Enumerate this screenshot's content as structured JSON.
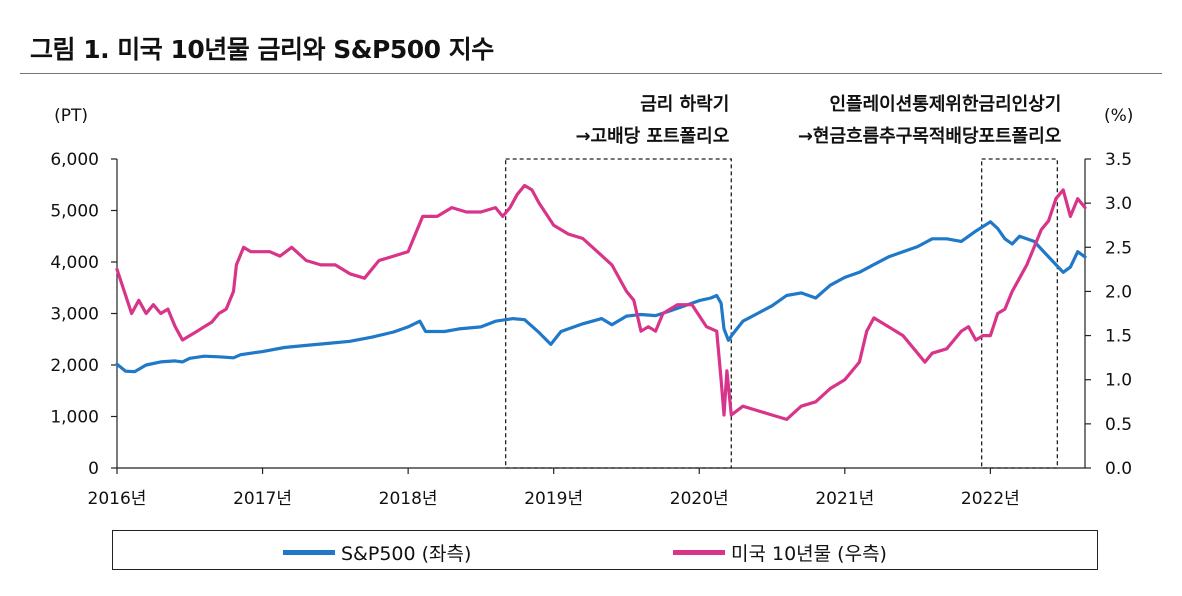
{
  "title": "그림 1.  미국 10년물 금리와 S&P500 지수",
  "chart_data": {
    "type": "line",
    "title": "그림 1.  미국 10년물 금리와 S&P500 지수",
    "left_unit": "(PT)",
    "right_unit": "(%)",
    "left_ylim": [
      0,
      6000
    ],
    "right_ylim": [
      0.0,
      3.5
    ],
    "left_ticks": [
      "0",
      "1,000",
      "2,000",
      "3,000",
      "4,000",
      "5,000",
      "6,000"
    ],
    "right_ticks": [
      "0.0",
      "0.5",
      "1.0",
      "1.5",
      "2.0",
      "2.5",
      "3.0",
      "3.5"
    ],
    "x_ticks": [
      "2016년",
      "2017년",
      "2018년",
      "2019년",
      "2020년",
      "2021년",
      "2022년"
    ],
    "x_range": [
      2016.0,
      2022.65
    ],
    "grid": false,
    "legend_position": "bottom",
    "series": [
      {
        "name": "S&P500 (좌측)",
        "axis": "left",
        "color": "#1F78C8",
        "x": [
          2016.0,
          2016.06,
          2016.12,
          2016.2,
          2016.3,
          2016.4,
          2016.45,
          2016.5,
          2016.6,
          2016.7,
          2016.8,
          2016.85,
          2016.95,
          2017.0,
          2017.15,
          2017.3,
          2017.45,
          2017.6,
          2017.75,
          2017.9,
          2018.0,
          2018.08,
          2018.12,
          2018.25,
          2018.35,
          2018.5,
          2018.6,
          2018.72,
          2018.8,
          2018.9,
          2018.98,
          2019.05,
          2019.2,
          2019.33,
          2019.4,
          2019.5,
          2019.6,
          2019.7,
          2019.8,
          2019.9,
          2020.0,
          2020.08,
          2020.12,
          2020.15,
          2020.17,
          2020.2,
          2020.23,
          2020.3,
          2020.4,
          2020.5,
          2020.6,
          2020.7,
          2020.8,
          2020.9,
          2021.0,
          2021.1,
          2021.2,
          2021.3,
          2021.4,
          2021.5,
          2021.6,
          2021.7,
          2021.8,
          2021.9,
          2022.0,
          2022.05,
          2022.1,
          2022.15,
          2022.2,
          2022.3,
          2022.4,
          2022.45,
          2022.5,
          2022.55,
          2022.6,
          2022.65
        ],
        "values": [
          2015,
          1880,
          1870,
          2000,
          2060,
          2080,
          2060,
          2130,
          2170,
          2160,
          2140,
          2200,
          2240,
          2260,
          2340,
          2380,
          2420,
          2460,
          2540,
          2640,
          2740,
          2850,
          2650,
          2650,
          2700,
          2740,
          2850,
          2900,
          2880,
          2630,
          2400,
          2650,
          2800,
          2900,
          2780,
          2950,
          2980,
          2960,
          3050,
          3150,
          3250,
          3300,
          3350,
          3200,
          2700,
          2480,
          2600,
          2850,
          3000,
          3150,
          3350,
          3400,
          3300,
          3550,
          3700,
          3800,
          3950,
          4100,
          4200,
          4300,
          4450,
          4450,
          4400,
          4600,
          4780,
          4650,
          4450,
          4350,
          4500,
          4400,
          4100,
          3950,
          3800,
          3900,
          4200,
          4100
        ]
      },
      {
        "name": "미국 10년물 (우측)",
        "axis": "right",
        "color": "#D8348A",
        "x": [
          2016.0,
          2016.05,
          2016.1,
          2016.15,
          2016.2,
          2016.25,
          2016.3,
          2016.35,
          2016.4,
          2016.45,
          2016.5,
          2016.55,
          2016.6,
          2016.65,
          2016.7,
          2016.75,
          2016.8,
          2016.82,
          2016.87,
          2016.92,
          2016.97,
          2017.05,
          2017.12,
          2017.2,
          2017.3,
          2017.4,
          2017.5,
          2017.6,
          2017.7,
          2017.8,
          2017.9,
          2018.0,
          2018.05,
          2018.1,
          2018.2,
          2018.3,
          2018.4,
          2018.5,
          2018.6,
          2018.65,
          2018.7,
          2018.75,
          2018.8,
          2018.85,
          2018.9,
          2019.0,
          2019.1,
          2019.2,
          2019.3,
          2019.4,
          2019.5,
          2019.55,
          2019.6,
          2019.65,
          2019.7,
          2019.75,
          2019.85,
          2019.95,
          2020.05,
          2020.12,
          2020.15,
          2020.17,
          2020.19,
          2020.22,
          2020.3,
          2020.4,
          2020.5,
          2020.6,
          2020.7,
          2020.8,
          2020.9,
          2021.0,
          2021.05,
          2021.1,
          2021.15,
          2021.2,
          2021.3,
          2021.4,
          2021.5,
          2021.55,
          2021.6,
          2021.7,
          2021.75,
          2021.8,
          2021.85,
          2021.9,
          2021.95,
          2022.0,
          2022.05,
          2022.1,
          2022.15,
          2022.2,
          2022.25,
          2022.3,
          2022.35,
          2022.4,
          2022.45,
          2022.5,
          2022.55,
          2022.6,
          2022.65
        ],
        "values": [
          2.25,
          2.0,
          1.75,
          1.9,
          1.75,
          1.85,
          1.75,
          1.8,
          1.6,
          1.45,
          1.5,
          1.55,
          1.6,
          1.65,
          1.75,
          1.8,
          2.0,
          2.3,
          2.5,
          2.45,
          2.45,
          2.45,
          2.4,
          2.5,
          2.35,
          2.3,
          2.3,
          2.2,
          2.15,
          2.35,
          2.4,
          2.45,
          2.65,
          2.85,
          2.85,
          2.95,
          2.9,
          2.9,
          2.95,
          2.85,
          2.95,
          3.1,
          3.2,
          3.15,
          3.0,
          2.75,
          2.65,
          2.6,
          2.45,
          2.3,
          2.0,
          1.9,
          1.55,
          1.6,
          1.55,
          1.75,
          1.85,
          1.85,
          1.6,
          1.55,
          1.0,
          0.6,
          1.1,
          0.6,
          0.7,
          0.65,
          0.6,
          0.55,
          0.7,
          0.75,
          0.9,
          1.0,
          1.1,
          1.2,
          1.55,
          1.7,
          1.6,
          1.5,
          1.3,
          1.2,
          1.3,
          1.35,
          1.45,
          1.55,
          1.6,
          1.45,
          1.5,
          1.5,
          1.75,
          1.8,
          2.0,
          2.15,
          2.3,
          2.5,
          2.7,
          2.8,
          3.05,
          3.15,
          2.85,
          3.05,
          2.95
        ]
      }
    ],
    "annotations": [
      {
        "lines": [
          "금리 하락기",
          "→고배당 포트폴리오"
        ],
        "x_range": [
          2018.67,
          2020.22
        ]
      },
      {
        "lines": [
          "인플레이션통제위한금리인상기",
          "→현금흐름추구목적배당포트폴리오"
        ],
        "x_range": [
          2021.94,
          2022.46
        ]
      }
    ]
  }
}
